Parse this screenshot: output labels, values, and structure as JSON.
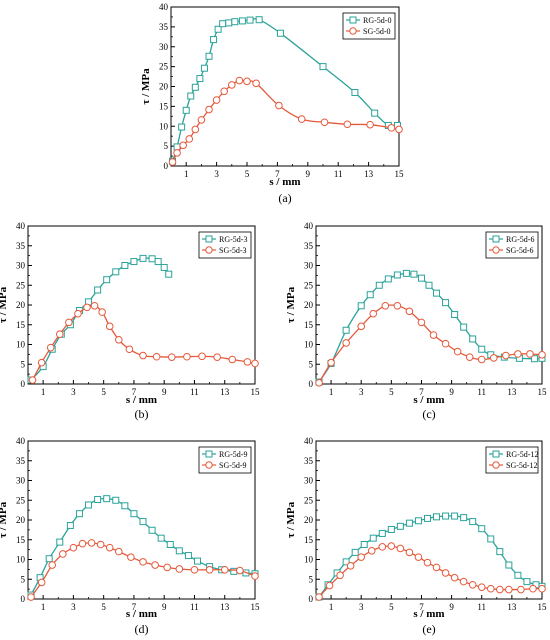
{
  "chart_data": [
    {
      "type": "line",
      "panel_label": "(a)",
      "xlabel": "s / mm",
      "ylabel": "τ / MPa",
      "xlim": [
        0,
        15
      ],
      "ylim": [
        0,
        40
      ],
      "xticks": [
        1,
        3,
        5,
        7,
        9,
        11,
        13,
        15
      ],
      "yticks": [
        0,
        5,
        10,
        15,
        20,
        25,
        30,
        35,
        40
      ],
      "grid": false,
      "legend_position": "top-right",
      "series": [
        {
          "name": "RG-5d-0",
          "color": "#2aa39a",
          "marker": "square",
          "x": [
            0.1,
            0.4,
            0.7,
            1.0,
            1.3,
            1.6,
            1.9,
            2.2,
            2.5,
            2.8,
            3.1,
            3.4,
            3.8,
            4.2,
            4.7,
            5.2,
            5.8,
            7.2,
            10.0,
            12.1,
            13.4,
            14.3,
            14.9
          ],
          "y": [
            1.2,
            4.8,
            9.8,
            14.0,
            17.6,
            19.8,
            22.0,
            24.6,
            27.6,
            31.8,
            34.4,
            35.8,
            36.0,
            36.3,
            36.5,
            36.7,
            36.8,
            33.4,
            25.0,
            18.5,
            13.3,
            10.2,
            10.2
          ]
        },
        {
          "name": "SG-5d-0",
          "color": "#e55a3c",
          "marker": "circle",
          "x": [
            0.1,
            0.4,
            0.8,
            1.2,
            1.6,
            2.0,
            2.5,
            3.0,
            3.5,
            4.0,
            4.5,
            5.0,
            5.6,
            7.1,
            8.6,
            10.1,
            11.6,
            13.1,
            14.5,
            15.0
          ],
          "y": [
            1.0,
            3.3,
            5.2,
            6.8,
            9.2,
            11.6,
            14.2,
            16.6,
            18.8,
            20.4,
            21.5,
            21.3,
            20.8,
            15.2,
            11.8,
            11.0,
            10.5,
            10.4,
            9.6,
            9.2
          ]
        }
      ]
    },
    {
      "type": "line",
      "panel_label": "(b)",
      "xlabel": "s / mm",
      "ylabel": "τ / MPa",
      "xlim": [
        0,
        15
      ],
      "ylim": [
        0,
        40
      ],
      "xticks": [
        1,
        3,
        5,
        7,
        9,
        11,
        13,
        15
      ],
      "yticks": [
        0,
        5,
        10,
        15,
        20,
        25,
        30,
        35,
        40
      ],
      "grid": false,
      "legend_position": "top-right",
      "series": [
        {
          "name": "RG-5d-3",
          "color": "#2aa39a",
          "marker": "square",
          "x": [
            0.2,
            1.0,
            1.6,
            2.2,
            2.8,
            3.4,
            4.0,
            4.6,
            5.2,
            5.8,
            6.4,
            7.0,
            7.6,
            8.2,
            8.6,
            9.0,
            9.3
          ],
          "y": [
            1.0,
            4.4,
            8.8,
            12.6,
            15.0,
            18.6,
            20.8,
            23.8,
            26.4,
            28.4,
            30.0,
            31.0,
            31.8,
            31.7,
            31.0,
            29.5,
            27.8
          ]
        },
        {
          "name": "SG-5d-3",
          "color": "#e55a3c",
          "marker": "circle",
          "x": [
            0.3,
            0.9,
            1.5,
            2.1,
            2.7,
            3.3,
            3.9,
            4.4,
            4.9,
            5.4,
            6.0,
            6.7,
            7.6,
            8.5,
            9.5,
            10.5,
            11.5,
            12.5,
            13.5,
            14.5,
            15.0
          ],
          "y": [
            1.0,
            5.4,
            9.2,
            12.6,
            15.6,
            17.8,
            19.4,
            19.8,
            18.2,
            14.6,
            11.2,
            8.8,
            7.2,
            6.9,
            6.8,
            6.9,
            7.0,
            6.8,
            6.2,
            5.6,
            5.2
          ]
        }
      ]
    },
    {
      "type": "line",
      "panel_label": "(c)",
      "xlabel": "s / mm",
      "ylabel": "τ / MPa",
      "xlim": [
        0,
        15
      ],
      "ylim": [
        0,
        40
      ],
      "xticks": [
        1,
        3,
        5,
        7,
        9,
        11,
        13,
        15
      ],
      "yticks": [
        0,
        5,
        10,
        15,
        20,
        25,
        30,
        35,
        40
      ],
      "grid": false,
      "legend_position": "top-right",
      "series": [
        {
          "name": "RG-5d-6",
          "color": "#2aa39a",
          "marker": "square",
          "x": [
            0.2,
            1.0,
            2.0,
            3.0,
            3.6,
            4.2,
            4.8,
            5.4,
            6.0,
            6.5,
            7.0,
            7.5,
            8.0,
            8.6,
            9.2,
            9.8,
            10.4,
            11.0,
            11.6,
            12.5,
            13.5,
            14.5,
            15.0
          ],
          "y": [
            0.5,
            5.2,
            13.6,
            19.8,
            22.6,
            25.0,
            26.6,
            27.6,
            28.0,
            27.8,
            26.8,
            25.0,
            23.0,
            20.6,
            17.6,
            14.4,
            11.4,
            8.8,
            7.4,
            6.8,
            6.5,
            6.4,
            6.5
          ]
        },
        {
          "name": "SG-5d-6",
          "color": "#e55a3c",
          "marker": "circle",
          "x": [
            0.2,
            1.0,
            2.0,
            3.0,
            3.8,
            4.6,
            5.4,
            6.2,
            7.0,
            7.8,
            8.6,
            9.4,
            10.2,
            11.0,
            11.8,
            12.6,
            13.4,
            14.2,
            15.0
          ],
          "y": [
            0.3,
            5.4,
            10.4,
            14.6,
            17.8,
            19.8,
            19.8,
            18.4,
            15.6,
            12.4,
            10.2,
            8.2,
            6.8,
            6.2,
            6.6,
            7.2,
            7.6,
            7.6,
            7.4
          ]
        }
      ]
    },
    {
      "type": "line",
      "panel_label": "(d)",
      "xlabel": "s / mm",
      "ylabel": "τ / MPa",
      "xlim": [
        0,
        15
      ],
      "ylim": [
        0,
        40
      ],
      "xticks": [
        1,
        3,
        5,
        7,
        9,
        11,
        13,
        15
      ],
      "yticks": [
        0,
        5,
        10,
        15,
        20,
        25,
        30,
        35,
        40
      ],
      "grid": false,
      "legend_position": "top-right",
      "series": [
        {
          "name": "RG-5d-9",
          "color": "#2aa39a",
          "marker": "square",
          "x": [
            0.2,
            0.8,
            1.4,
            2.1,
            2.8,
            3.4,
            4.0,
            4.6,
            5.2,
            5.8,
            6.4,
            7.0,
            7.6,
            8.2,
            8.8,
            9.4,
            10.0,
            10.6,
            11.2,
            12.0,
            12.8,
            13.6,
            14.4,
            15.0
          ],
          "y": [
            1.0,
            5.4,
            10.2,
            14.4,
            18.6,
            21.6,
            23.8,
            25.2,
            25.4,
            25.0,
            23.6,
            21.6,
            19.6,
            17.4,
            15.4,
            13.8,
            12.2,
            11.0,
            9.6,
            8.2,
            7.4,
            7.0,
            6.6,
            6.4
          ]
        },
        {
          "name": "SG-5d-9",
          "color": "#e55a3c",
          "marker": "circle",
          "x": [
            0.2,
            0.9,
            1.6,
            2.3,
            3.0,
            3.6,
            4.2,
            4.8,
            5.4,
            6.0,
            6.8,
            7.6,
            8.4,
            9.2,
            10.0,
            11.0,
            12.0,
            13.0,
            14.0,
            15.0
          ],
          "y": [
            0.5,
            4.2,
            8.6,
            11.4,
            13.0,
            14.0,
            14.2,
            13.8,
            13.0,
            12.0,
            10.6,
            9.4,
            8.6,
            8.0,
            7.6,
            7.4,
            7.4,
            7.4,
            7.2,
            5.8
          ]
        }
      ]
    },
    {
      "type": "line",
      "panel_label": "(e)",
      "xlabel": "s / mm",
      "ylabel": "τ / MPa",
      "xlim": [
        0,
        15
      ],
      "ylim": [
        0,
        40
      ],
      "xticks": [
        1,
        3,
        5,
        7,
        9,
        11,
        13,
        15
      ],
      "yticks": [
        0,
        5,
        10,
        15,
        20,
        25,
        30,
        35,
        40
      ],
      "grid": false,
      "legend_position": "top-right",
      "series": [
        {
          "name": "RG-5d-12",
          "color": "#2aa39a",
          "marker": "square",
          "x": [
            0.2,
            0.8,
            1.4,
            2.0,
            2.6,
            3.2,
            3.8,
            4.4,
            5.0,
            5.6,
            6.2,
            6.8,
            7.4,
            8.0,
            8.6,
            9.2,
            9.8,
            10.4,
            11.0,
            11.6,
            12.2,
            12.8,
            13.4,
            14.0,
            14.6,
            15.0
          ],
          "y": [
            0.5,
            3.6,
            6.6,
            9.4,
            11.8,
            13.8,
            15.4,
            16.6,
            17.6,
            18.4,
            19.2,
            19.8,
            20.4,
            20.8,
            21.0,
            21.0,
            20.6,
            19.6,
            17.8,
            15.2,
            12.0,
            8.6,
            6.0,
            4.4,
            3.6,
            3.2
          ]
        },
        {
          "name": "SG-5d-12",
          "color": "#e55a3c",
          "marker": "circle",
          "x": [
            0.2,
            0.9,
            1.6,
            2.3,
            3.0,
            3.7,
            4.4,
            5.0,
            5.6,
            6.2,
            6.8,
            7.4,
            8.0,
            8.6,
            9.2,
            9.8,
            10.4,
            11.0,
            11.6,
            12.2,
            12.8,
            13.6,
            14.4,
            15.0
          ],
          "y": [
            0.5,
            3.4,
            6.0,
            8.4,
            10.6,
            12.2,
            13.2,
            13.4,
            12.8,
            11.8,
            10.6,
            9.2,
            8.0,
            6.6,
            5.4,
            4.4,
            3.6,
            3.0,
            2.6,
            2.4,
            2.4,
            2.4,
            2.6,
            2.6
          ]
        }
      ]
    }
  ]
}
